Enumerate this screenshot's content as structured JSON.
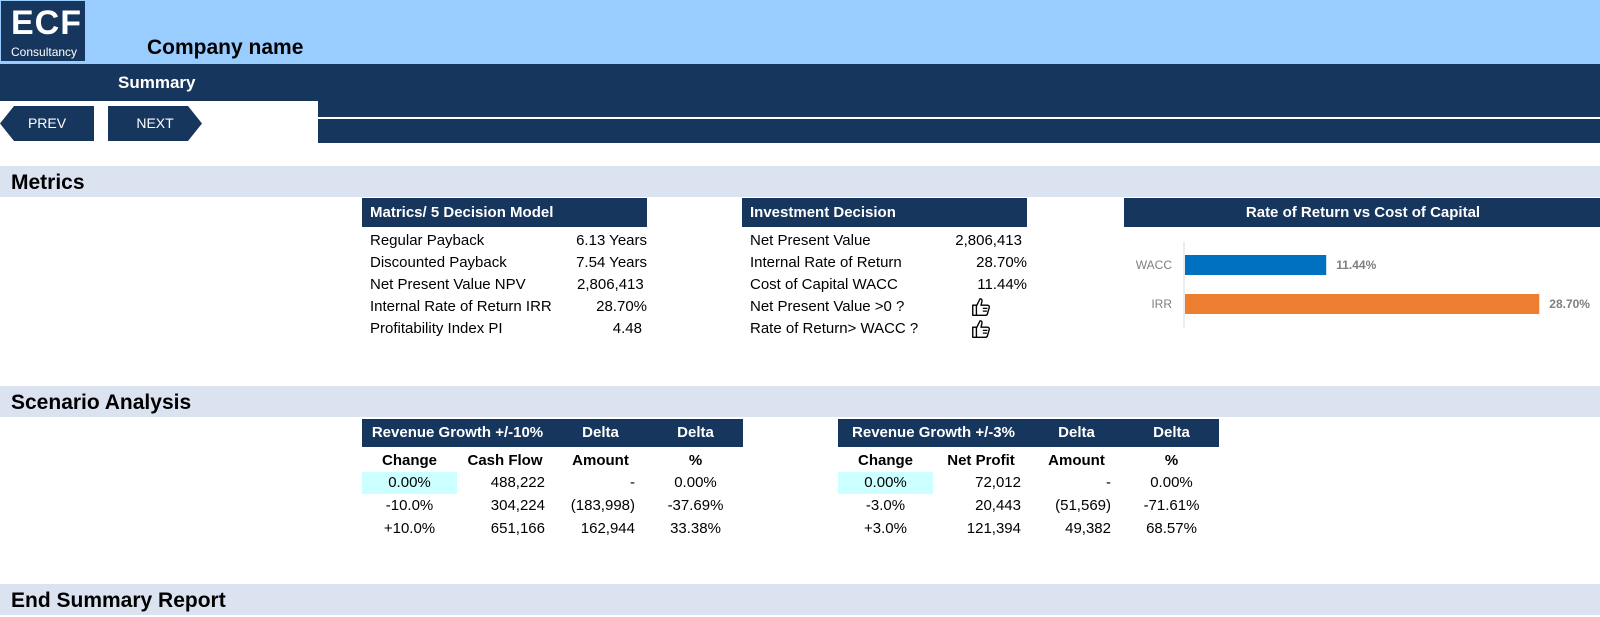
{
  "header": {
    "logo_big": "ECF",
    "logo_small": "Consultancy",
    "company": "Company name",
    "title": "Summary"
  },
  "nav": {
    "prev": "PREV",
    "next": "NEXT"
  },
  "sections": {
    "metrics": "Metrics",
    "scenario": "Scenario Analysis",
    "end": "End Summary Report"
  },
  "metrics_table": {
    "title": "Matrics/ 5 Decision Model",
    "rows": [
      {
        "label": "Regular Payback",
        "value": "6.13 Years"
      },
      {
        "label": "Discounted Payback",
        "value": "7.54 Years"
      },
      {
        "label": "Net Present Value NPV",
        "value": "2,806,413"
      },
      {
        "label": "Internal Rate of Return IRR",
        "value": "28.70%"
      },
      {
        "label": "Profitability Index PI",
        "value": "4.48"
      }
    ]
  },
  "investment_table": {
    "title": "Investment Decision",
    "rows": [
      {
        "label": "Net Present Value",
        "value": "2,806,413"
      },
      {
        "label": "Internal Rate of Return",
        "value": "28.70%"
      },
      {
        "label": "Cost of Capital WACC",
        "value": "11.44%"
      },
      {
        "label": "Net Present Value >0 ?",
        "icon": "thumbs-up-icon"
      },
      {
        "label": "Rate of Return> WACC ?",
        "icon": "thumbs-up-icon"
      }
    ]
  },
  "chart_data": {
    "type": "bar",
    "orientation": "horizontal",
    "title": "Rate of Return vs Cost of Capital",
    "categories": [
      "WACC",
      "IRR"
    ],
    "values": [
      11.44,
      28.7
    ],
    "value_labels": [
      "11.44%",
      "28.70%"
    ],
    "colors": [
      "#0070c0",
      "#ed7d31"
    ],
    "xlim": [
      0,
      32
    ],
    "grid": false,
    "legend": "none"
  },
  "scenario_revenue": {
    "headers": [
      "Revenue Growth +/-10%",
      "Delta",
      "Delta"
    ],
    "subheaders": [
      "Change",
      "Cash Flow",
      "Amount",
      "%"
    ],
    "rows": [
      [
        "0.00%",
        "488,222",
        "-",
        "0.00%"
      ],
      [
        "-10.0%",
        "304,224",
        "(183,998)",
        "-37.69%"
      ],
      [
        "+10.0%",
        "651,166",
        "162,944",
        "33.38%"
      ]
    ]
  },
  "scenario_profit": {
    "headers": [
      "Revenue Growth +/-3%",
      "Delta",
      "Delta"
    ],
    "subheaders": [
      "Change",
      "Net Profit",
      "Amount",
      "%"
    ],
    "rows": [
      [
        "0.00%",
        "72,012",
        "-",
        "0.00%"
      ],
      [
        "-3.0%",
        "20,443",
        "(51,569)",
        "-71.61%"
      ],
      [
        "+3.0%",
        "121,394",
        "49,382",
        "68.57%"
      ]
    ]
  },
  "colors": {
    "navy": "#17365d",
    "light_blue": "#99ccff",
    "section_band": "#dbe3f1",
    "highlight": "#ccffff"
  }
}
